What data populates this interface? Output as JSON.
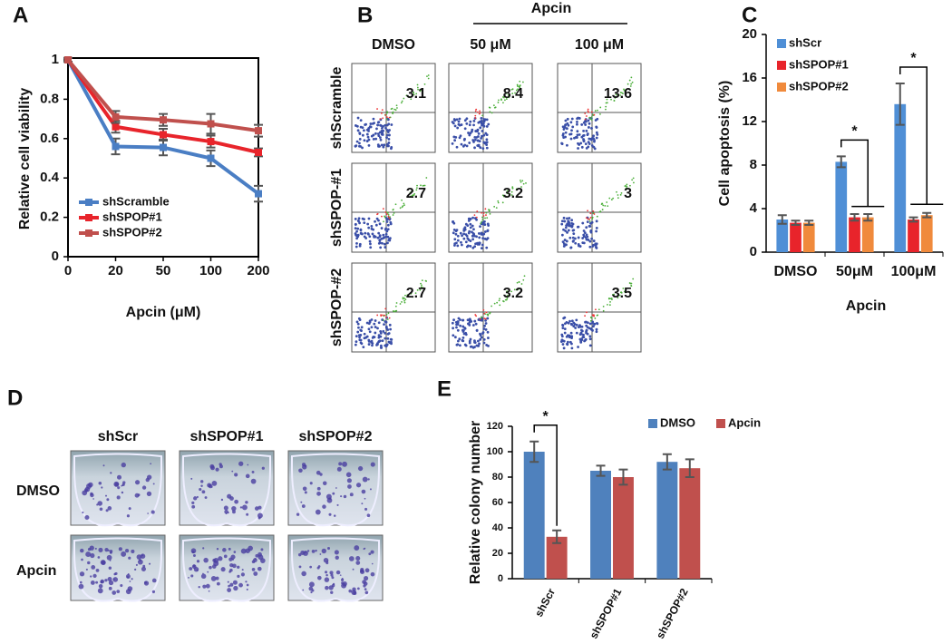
{
  "chart_data": [
    {
      "type": "line",
      "panel_label": "A",
      "y_label": "Relative cell viability",
      "x_label": "Apcin (μM)",
      "categories": [
        "0",
        "20",
        "50",
        "100",
        "200"
      ],
      "series": [
        {
          "name": "shScramble",
          "color": "#4a7ec4",
          "values": [
            1,
            0.56,
            0.555,
            0.5,
            0.32
          ],
          "errors": [
            0.01,
            0.04,
            0.04,
            0.04,
            0.04
          ]
        },
        {
          "name": "shSPOP#1",
          "color": "#e8242b",
          "values": [
            1,
            0.66,
            0.62,
            0.585,
            0.53
          ],
          "errors": [
            0.01,
            0.03,
            0.03,
            0.03,
            0.02
          ]
        },
        {
          "name": "shSPOP#2",
          "color": "#c0504d",
          "values": [
            1,
            0.71,
            0.695,
            0.675,
            0.64
          ],
          "errors": [
            0.01,
            0.03,
            0.03,
            0.05,
            0.03
          ]
        }
      ],
      "ylim": [
        0,
        1
      ],
      "yticks": [
        0,
        0.2,
        0.4,
        0.6,
        0.8,
        1
      ],
      "legend": "lower left"
    },
    {
      "type": "bar",
      "panel_label": "C",
      "y_label": "Cell apoptosis (%)",
      "x_label": "Apcin",
      "categories": [
        "DMSO",
        "50μM",
        "100μM"
      ],
      "series": [
        {
          "name": "shScr",
          "color": "#4f8fd6",
          "values": [
            3.0,
            8.3,
            13.6
          ],
          "errors": [
            0.4,
            0.5,
            1.9
          ]
        },
        {
          "name": "shSPOP#1",
          "color": "#e8242b",
          "values": [
            2.7,
            3.2,
            3.0
          ],
          "errors": [
            0.2,
            0.3,
            0.2
          ]
        },
        {
          "name": "shSPOP#2",
          "color": "#f08a3c",
          "values": [
            2.7,
            3.2,
            3.4
          ],
          "errors": [
            0.2,
            0.3,
            0.2
          ]
        }
      ],
      "ylim": [
        0,
        20
      ],
      "yticks": [
        0,
        4,
        8,
        12,
        16,
        20
      ],
      "legend": "upper left",
      "annotations": [
        "*",
        "*"
      ]
    },
    {
      "type": "bar",
      "panel_label": "E",
      "y_label": "Relative  colony number",
      "categories": [
        "shScr",
        "shSPOP#1",
        "shSPOP#2"
      ],
      "series": [
        {
          "name": "DMSO",
          "color": "#4f81bd",
          "values": [
            100,
            85,
            92
          ],
          "errors": [
            8,
            4,
            6
          ]
        },
        {
          "name": "Apcin",
          "color": "#c0504d",
          "values": [
            33,
            80,
            87
          ],
          "errors": [
            5,
            6,
            7
          ]
        }
      ],
      "ylim": [
        0,
        120
      ],
      "yticks": [
        0,
        20,
        40,
        60,
        80,
        100,
        120
      ],
      "legend": "upper right",
      "annotations": [
        "*"
      ]
    }
  ],
  "flow_panel": {
    "panel_label": "B",
    "group": "Apcin",
    "columns": [
      "DMSO",
      "50 μM",
      "100 μM"
    ],
    "rows": [
      "shScramble",
      "shSPOP-#1",
      "shSPOP-#2"
    ],
    "values": [
      [
        3.1,
        8.4,
        13.6
      ],
      [
        2.7,
        3.2,
        3.0
      ],
      [
        2.7,
        3.2,
        3.5
      ]
    ]
  },
  "colony_panel": {
    "panel_label": "D",
    "columns": [
      "shScr",
      "shSPOP#1",
      "shSPOP#2"
    ],
    "rows": [
      "DMSO",
      "Apcin"
    ]
  }
}
